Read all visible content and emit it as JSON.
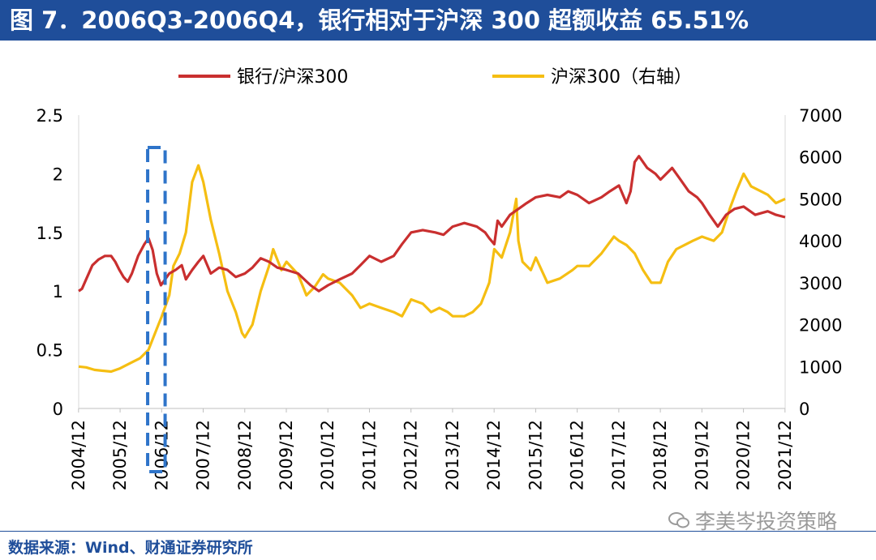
{
  "header": {
    "title": "图 7．2006Q3-2006Q4，银行相对于沪深 300 超额收益 65.51%"
  },
  "footer": {
    "source": "数据来源：Wind、财通证券研究所",
    "watermark": "李美岑投资策略"
  },
  "colors": {
    "ratio": "#c92f2f",
    "index": "#f5be12",
    "highlight": "#2e74c9",
    "title_bg": "#1f4e9a"
  },
  "chart_data": {
    "type": "line",
    "title": "2006Q3-2006Q4，银行相对于沪深 300 超额收益 65.51%",
    "legend_position": "top",
    "x_tick_labels": [
      "2004/12",
      "2005/12",
      "2006/12",
      "2007/12",
      "2008/12",
      "2009/12",
      "2010/12",
      "2011/12",
      "2012/12",
      "2013/12",
      "2014/12",
      "2015/12",
      "2016/12",
      "2017/12",
      "2018/12",
      "2019/12",
      "2020/12",
      "2021/12"
    ],
    "x_range": [
      2004.92,
      2021.92
    ],
    "left_axis": {
      "ylim": [
        0,
        2.5
      ],
      "ticks": [
        "0",
        "0.5",
        "1",
        "1.5",
        "2",
        "2.5"
      ]
    },
    "right_axis": {
      "ylim": [
        0,
        7000
      ],
      "ticks": [
        "0",
        "1000",
        "2000",
        "3000",
        "4000",
        "5000",
        "6000",
        "7000"
      ]
    },
    "highlight_period": {
      "label": "2006Q3-2006Q4",
      "x_start": 2006.58,
      "x_end": 2007.0
    },
    "series": [
      {
        "name": "银行/沪深300",
        "axis": "left",
        "x": [
          2004.92,
          2005.0,
          2005.1,
          2005.25,
          2005.4,
          2005.55,
          2005.7,
          2005.8,
          2005.9,
          2006.0,
          2006.1,
          2006.2,
          2006.35,
          2006.5,
          2006.6,
          2006.7,
          2006.8,
          2006.9,
          2007.0,
          2007.1,
          2007.25,
          2007.4,
          2007.5,
          2007.65,
          2007.8,
          2007.92,
          2008.1,
          2008.3,
          2008.5,
          2008.7,
          2008.92,
          2009.1,
          2009.3,
          2009.5,
          2009.7,
          2009.92,
          2010.2,
          2010.5,
          2010.7,
          2010.92,
          2011.2,
          2011.5,
          2011.7,
          2011.92,
          2012.2,
          2012.5,
          2012.7,
          2012.92,
          2013.2,
          2013.5,
          2013.7,
          2013.92,
          2014.2,
          2014.5,
          2014.7,
          2014.8,
          2014.92,
          2015.0,
          2015.1,
          2015.3,
          2015.5,
          2015.7,
          2015.92,
          2016.2,
          2016.5,
          2016.7,
          2016.92,
          2017.2,
          2017.5,
          2017.7,
          2017.92,
          2018.1,
          2018.2,
          2018.3,
          2018.4,
          2018.6,
          2018.8,
          2018.92,
          2019.2,
          2019.4,
          2019.6,
          2019.8,
          2019.92,
          2020.1,
          2020.3,
          2020.5,
          2020.7,
          2020.92,
          2021.2,
          2021.5,
          2021.7,
          2021.92
        ],
        "values": [
          1.0,
          1.02,
          1.1,
          1.22,
          1.27,
          1.3,
          1.3,
          1.25,
          1.18,
          1.12,
          1.08,
          1.15,
          1.3,
          1.4,
          1.45,
          1.35,
          1.15,
          1.05,
          1.1,
          1.15,
          1.18,
          1.22,
          1.1,
          1.18,
          1.25,
          1.3,
          1.15,
          1.2,
          1.18,
          1.12,
          1.15,
          1.2,
          1.28,
          1.25,
          1.2,
          1.18,
          1.15,
          1.05,
          1.0,
          1.05,
          1.1,
          1.15,
          1.22,
          1.3,
          1.25,
          1.3,
          1.4,
          1.5,
          1.52,
          1.5,
          1.48,
          1.55,
          1.58,
          1.55,
          1.5,
          1.45,
          1.4,
          1.6,
          1.55,
          1.65,
          1.7,
          1.75,
          1.8,
          1.82,
          1.8,
          1.85,
          1.82,
          1.75,
          1.8,
          1.85,
          1.9,
          1.75,
          1.85,
          2.1,
          2.15,
          2.05,
          2.0,
          1.95,
          2.05,
          1.95,
          1.85,
          1.8,
          1.75,
          1.65,
          1.55,
          1.65,
          1.7,
          1.72,
          1.65,
          1.68,
          1.65,
          1.63
        ]
      },
      {
        "name": "沪深300（右轴）",
        "axis": "right",
        "x": [
          2004.92,
          2005.1,
          2005.3,
          2005.5,
          2005.7,
          2005.9,
          2006.0,
          2006.2,
          2006.4,
          2006.6,
          2006.8,
          2006.92,
          2007.1,
          2007.2,
          2007.35,
          2007.5,
          2007.65,
          2007.8,
          2007.92,
          2008.1,
          2008.3,
          2008.5,
          2008.7,
          2008.85,
          2008.92,
          2009.1,
          2009.3,
          2009.5,
          2009.6,
          2009.8,
          2009.92,
          2010.2,
          2010.4,
          2010.6,
          2010.8,
          2010.92,
          2011.2,
          2011.5,
          2011.7,
          2011.92,
          2012.2,
          2012.5,
          2012.7,
          2012.92,
          2013.2,
          2013.4,
          2013.6,
          2013.8,
          2013.92,
          2014.2,
          2014.4,
          2014.6,
          2014.8,
          2014.92,
          2015.1,
          2015.3,
          2015.45,
          2015.5,
          2015.6,
          2015.8,
          2015.92,
          2016.2,
          2016.5,
          2016.8,
          2016.92,
          2017.2,
          2017.5,
          2017.8,
          2017.92,
          2018.1,
          2018.3,
          2018.5,
          2018.7,
          2018.92,
          2019.1,
          2019.3,
          2019.5,
          2019.7,
          2019.92,
          2020.2,
          2020.4,
          2020.6,
          2020.75,
          2020.92,
          2021.1,
          2021.3,
          2021.5,
          2021.7,
          2021.92
        ],
        "values": [
          1000,
          980,
          920,
          900,
          880,
          950,
          1000,
          1100,
          1200,
          1400,
          1900,
          2200,
          2700,
          3400,
          3700,
          4200,
          5400,
          5800,
          5400,
          4500,
          3700,
          2800,
          2300,
          1800,
          1700,
          2000,
          2800,
          3400,
          3800,
          3300,
          3500,
          3200,
          2700,
          2900,
          3200,
          3100,
          3000,
          2700,
          2400,
          2500,
          2400,
          2300,
          2200,
          2600,
          2500,
          2300,
          2400,
          2300,
          2200,
          2200,
          2300,
          2500,
          3000,
          3800,
          3600,
          4200,
          5000,
          4000,
          3500,
          3300,
          3600,
          3000,
          3100,
          3300,
          3400,
          3400,
          3700,
          4100,
          4000,
          3900,
          3700,
          3300,
          3000,
          3000,
          3500,
          3800,
          3900,
          4000,
          4100,
          4000,
          4200,
          4800,
          5200,
          5600,
          5300,
          5200,
          5100,
          4900,
          5000
        ]
      }
    ]
  }
}
